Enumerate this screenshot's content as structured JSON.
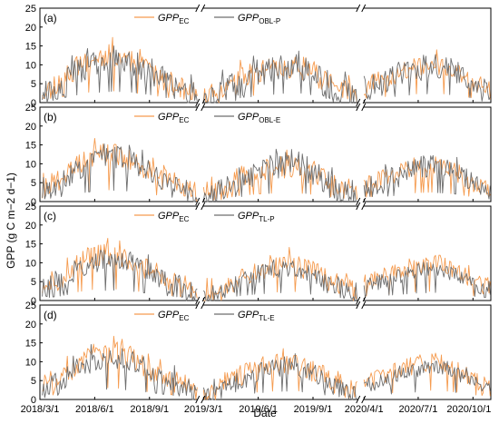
{
  "chart_data": {
    "type": "line",
    "xlabel": "Date",
    "ylabel": "GPP (g C m−2 d−1)",
    "ylim": [
      0,
      25
    ],
    "y_ticks": [
      0,
      5,
      10,
      15,
      20,
      25
    ],
    "x_tick_labels": [
      "2018/3/1",
      "2018/6/1",
      "2018/9/1",
      "2019/3/1",
      "2019/6/1",
      "2019/9/1",
      "2020/4/1",
      "2020/7/1",
      "2020/10/1"
    ],
    "segments": [
      {
        "start": "2018-03-01",
        "end": "2018-11-20"
      },
      {
        "start": "2019-03-01",
        "end": "2019-11-15"
      },
      {
        "start": "2020-04-01",
        "end": "2020-10-31"
      }
    ],
    "colors": {
      "ec": "#f59b4f",
      "model": "#6e6e6e"
    },
    "panels": [
      {
        "label": "(a)",
        "series": [
          {
            "name": "GPP",
            "subscript": "EC",
            "seed": 11,
            "segments": [
              {
                "x": [
                  "2018-03-05",
                  "2018-04-01",
                  "2018-05-01",
                  "2018-06-01",
                  "2018-07-01",
                  "2018-08-01",
                  "2018-09-01",
                  "2018-10-01",
                  "2018-11-01",
                  "2018-11-20"
                ],
                "y": [
                  3.5,
                  5.5,
                  9,
                  12,
                  12.5,
                  11,
                  8,
                  5.5,
                  3.5,
                  2.5
                ],
                "noise": 3.0
              },
              {
                "x": [
                  "2019-03-01",
                  "2019-04-01",
                  "2019-05-01",
                  "2019-06-01",
                  "2019-07-01",
                  "2019-08-01",
                  "2019-09-01",
                  "2019-10-01",
                  "2019-11-01",
                  "2019-11-15"
                ],
                "y": [
                  1,
                  3,
                  6.5,
                  8,
                  9,
                  9.5,
                  7.5,
                  5,
                  3,
                  2
                ],
                "noise": 3.0
              },
              {
                "x": [
                  "2020-04-01",
                  "2020-05-01",
                  "2020-06-01",
                  "2020-07-01",
                  "2020-08-01",
                  "2020-09-01",
                  "2020-10-01",
                  "2020-10-31"
                ],
                "y": [
                  4.5,
                  6,
                  8,
                  9.5,
                  10,
                  8,
                  5,
                  3.5
                ],
                "noise": 2.5
              }
            ]
          },
          {
            "name": "GPP",
            "subscript": "OBL-P",
            "seed": 23,
            "segments": [
              {
                "x": [
                  "2018-03-05",
                  "2018-04-01",
                  "2018-05-01",
                  "2018-06-01",
                  "2018-07-01",
                  "2018-08-01",
                  "2018-09-01",
                  "2018-10-01",
                  "2018-11-01",
                  "2018-11-20"
                ],
                "y": [
                  2.5,
                  4,
                  8,
                  10.5,
                  12,
                  11,
                  8.5,
                  5,
                  3,
                  1.5
                ],
                "noise": 3.5
              },
              {
                "x": [
                  "2019-03-01",
                  "2019-04-01",
                  "2019-05-01",
                  "2019-06-01",
                  "2019-07-01",
                  "2019-08-01",
                  "2019-09-01",
                  "2019-10-01",
                  "2019-11-01",
                  "2019-11-15"
                ],
                "y": [
                  0.5,
                  2.5,
                  5,
                  7,
                  9,
                  11,
                  8,
                  4,
                  2,
                  1
                ],
                "noise": 4.0
              },
              {
                "x": [
                  "2020-04-01",
                  "2020-05-01",
                  "2020-06-01",
                  "2020-07-01",
                  "2020-08-01",
                  "2020-09-01",
                  "2020-10-01",
                  "2020-10-31"
                ],
                "y": [
                  3.5,
                  5,
                  7,
                  9,
                  9.5,
                  8,
                  4.5,
                  2.5
                ],
                "noise": 3.5
              }
            ]
          }
        ]
      },
      {
        "label": "(b)",
        "series": [
          {
            "name": "GPP",
            "subscript": "EC",
            "seed": 31,
            "segments": [
              {
                "x": [
                  "2018-03-05",
                  "2018-04-01",
                  "2018-05-01",
                  "2018-06-01",
                  "2018-07-01",
                  "2018-08-01",
                  "2018-09-01",
                  "2018-10-01",
                  "2018-11-01",
                  "2018-11-20"
                ],
                "y": [
                  3.5,
                  5.5,
                  9,
                  12,
                  12.5,
                  11,
                  8,
                  5.5,
                  3.5,
                  2.5
                ],
                "noise": 3.0
              },
              {
                "x": [
                  "2019-03-01",
                  "2019-04-01",
                  "2019-05-01",
                  "2019-06-01",
                  "2019-07-01",
                  "2019-08-01",
                  "2019-09-01",
                  "2019-10-01",
                  "2019-11-01",
                  "2019-11-15"
                ],
                "y": [
                  1,
                  3,
                  6.5,
                  8,
                  9,
                  9.5,
                  7.5,
                  5,
                  3,
                  2
                ],
                "noise": 3.0
              },
              {
                "x": [
                  "2020-04-01",
                  "2020-05-01",
                  "2020-06-01",
                  "2020-07-01",
                  "2020-08-01",
                  "2020-09-01",
                  "2020-10-01",
                  "2020-10-31"
                ],
                "y": [
                  4.5,
                  6,
                  8,
                  9.5,
                  10,
                  8,
                  5,
                  3.5
                ],
                "noise": 2.5
              }
            ]
          },
          {
            "name": "GPP",
            "subscript": "OBL-E",
            "seed": 43,
            "segments": [
              {
                "x": [
                  "2018-03-05",
                  "2018-04-01",
                  "2018-05-01",
                  "2018-06-01",
                  "2018-07-01",
                  "2018-08-01",
                  "2018-09-01",
                  "2018-10-01",
                  "2018-11-01",
                  "2018-11-20"
                ],
                "y": [
                  2.5,
                  4.5,
                  8.5,
                  11,
                  12,
                  11,
                  8,
                  5,
                  3,
                  1.5
                ],
                "noise": 3.0
              },
              {
                "x": [
                  "2019-03-01",
                  "2019-04-01",
                  "2019-05-01",
                  "2019-06-01",
                  "2019-07-01",
                  "2019-08-01",
                  "2019-09-01",
                  "2019-10-01",
                  "2019-11-01",
                  "2019-11-15"
                ],
                "y": [
                  0.5,
                  2.5,
                  5,
                  7.5,
                  9.5,
                  10.5,
                  7.5,
                  4,
                  2,
                  1
                ],
                "noise": 3.5
              },
              {
                "x": [
                  "2020-04-01",
                  "2020-05-01",
                  "2020-06-01",
                  "2020-07-01",
                  "2020-08-01",
                  "2020-09-01",
                  "2020-10-01",
                  "2020-10-31"
                ],
                "y": [
                  3.5,
                  5,
                  7,
                  9,
                  9.5,
                  8,
                  4.5,
                  2.5
                ],
                "noise": 3.0
              }
            ]
          }
        ]
      },
      {
        "label": "(c)",
        "series": [
          {
            "name": "GPP",
            "subscript": "EC",
            "seed": 51,
            "segments": [
              {
                "x": [
                  "2018-03-05",
                  "2018-04-01",
                  "2018-05-01",
                  "2018-06-01",
                  "2018-07-01",
                  "2018-08-01",
                  "2018-09-01",
                  "2018-10-01",
                  "2018-11-01",
                  "2018-11-20"
                ],
                "y": [
                  3.5,
                  5.5,
                  9,
                  12,
                  12.5,
                  11,
                  8,
                  5.5,
                  3.5,
                  2.5
                ],
                "noise": 3.0
              },
              {
                "x": [
                  "2019-03-01",
                  "2019-04-01",
                  "2019-05-01",
                  "2019-06-01",
                  "2019-07-01",
                  "2019-08-01",
                  "2019-09-01",
                  "2019-10-01",
                  "2019-11-01",
                  "2019-11-15"
                ],
                "y": [
                  1,
                  3,
                  6.5,
                  8,
                  9,
                  9.5,
                  7.5,
                  5,
                  3,
                  2
                ],
                "noise": 3.0
              },
              {
                "x": [
                  "2020-04-01",
                  "2020-05-01",
                  "2020-06-01",
                  "2020-07-01",
                  "2020-08-01",
                  "2020-09-01",
                  "2020-10-01",
                  "2020-10-31"
                ],
                "y": [
                  4.5,
                  6,
                  8,
                  9.5,
                  10,
                  8,
                  5,
                  3.5
                ],
                "noise": 2.5
              }
            ]
          },
          {
            "name": "GPP",
            "subscript": "TL-P",
            "seed": 63,
            "segments": [
              {
                "x": [
                  "2018-03-05",
                  "2018-04-01",
                  "2018-05-01",
                  "2018-06-01",
                  "2018-07-01",
                  "2018-08-01",
                  "2018-09-01",
                  "2018-10-01",
                  "2018-11-01",
                  "2018-11-20"
                ],
                "y": [
                  2.5,
                  4.5,
                  8,
                  10.5,
                  11,
                  10,
                  7.5,
                  5,
                  3,
                  1.5
                ],
                "noise": 3.0
              },
              {
                "x": [
                  "2019-03-01",
                  "2019-04-01",
                  "2019-05-01",
                  "2019-06-01",
                  "2019-07-01",
                  "2019-08-01",
                  "2019-09-01",
                  "2019-10-01",
                  "2019-11-01",
                  "2019-11-15"
                ],
                "y": [
                  0.5,
                  2.5,
                  5,
                  7,
                  8,
                  8.5,
                  6.5,
                  4,
                  2,
                  1
                ],
                "noise": 2.5
              },
              {
                "x": [
                  "2020-04-01",
                  "2020-05-01",
                  "2020-06-01",
                  "2020-07-01",
                  "2020-08-01",
                  "2020-09-01",
                  "2020-10-01",
                  "2020-10-31"
                ],
                "y": [
                  3.5,
                  5,
                  6.5,
                  8,
                  8.5,
                  7,
                  4.5,
                  2.5
                ],
                "noise": 2.0
              }
            ]
          }
        ]
      },
      {
        "label": "(d)",
        "series": [
          {
            "name": "GPP",
            "subscript": "EC",
            "seed": 71,
            "segments": [
              {
                "x": [
                  "2018-03-05",
                  "2018-04-01",
                  "2018-05-01",
                  "2018-06-01",
                  "2018-07-01",
                  "2018-08-01",
                  "2018-09-01",
                  "2018-10-01",
                  "2018-11-01",
                  "2018-11-20"
                ],
                "y": [
                  3.5,
                  5.5,
                  9,
                  12,
                  12.5,
                  11,
                  8,
                  5.5,
                  3.5,
                  2.5
                ],
                "noise": 3.0
              },
              {
                "x": [
                  "2019-03-01",
                  "2019-04-01",
                  "2019-05-01",
                  "2019-06-01",
                  "2019-07-01",
                  "2019-08-01",
                  "2019-09-01",
                  "2019-10-01",
                  "2019-11-01",
                  "2019-11-15"
                ],
                "y": [
                  1,
                  3,
                  6.5,
                  8,
                  9,
                  9.5,
                  7.5,
                  5,
                  3,
                  2
                ],
                "noise": 3.0
              },
              {
                "x": [
                  "2020-04-01",
                  "2020-05-01",
                  "2020-06-01",
                  "2020-07-01",
                  "2020-08-01",
                  "2020-09-01",
                  "2020-10-01",
                  "2020-10-31"
                ],
                "y": [
                  4.5,
                  6,
                  8,
                  9.5,
                  10,
                  8,
                  5,
                  3.5
                ],
                "noise": 2.5
              }
            ]
          },
          {
            "name": "GPP",
            "subscript": "TL-E",
            "seed": 83,
            "segments": [
              {
                "x": [
                  "2018-03-05",
                  "2018-04-01",
                  "2018-05-01",
                  "2018-06-01",
                  "2018-07-01",
                  "2018-08-01",
                  "2018-09-01",
                  "2018-10-01",
                  "2018-11-01",
                  "2018-11-20"
                ],
                "y": [
                  2.5,
                  4.5,
                  8,
                  10.5,
                  11,
                  10,
                  7.5,
                  5,
                  3,
                  1.5
                ],
                "noise": 3.0
              },
              {
                "x": [
                  "2019-03-01",
                  "2019-04-01",
                  "2019-05-01",
                  "2019-06-01",
                  "2019-07-01",
                  "2019-08-01",
                  "2019-09-01",
                  "2019-10-01",
                  "2019-11-01",
                  "2019-11-15"
                ],
                "y": [
                  0.5,
                  2.5,
                  5,
                  7,
                  8.5,
                  9,
                  6.5,
                  4,
                  2,
                  1
                ],
                "noise": 2.5
              },
              {
                "x": [
                  "2020-04-01",
                  "2020-05-01",
                  "2020-06-01",
                  "2020-07-01",
                  "2020-08-01",
                  "2020-09-01",
                  "2020-10-01",
                  "2020-10-31"
                ],
                "y": [
                  3.5,
                  5,
                  6.5,
                  8,
                  9,
                  7.5,
                  4.5,
                  2.5
                ],
                "noise": 2.0
              }
            ]
          }
        ]
      }
    ]
  }
}
